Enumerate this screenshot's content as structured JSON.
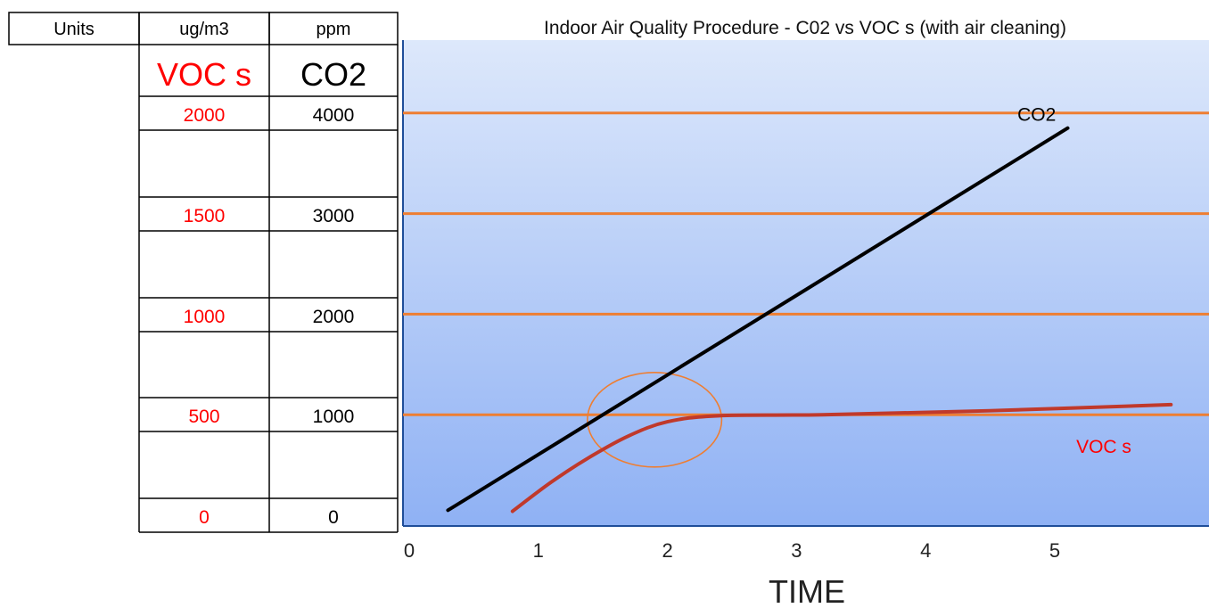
{
  "table": {
    "header": {
      "units": "Units",
      "voc_unit": "ug/m3",
      "co2_unit": "ppm"
    },
    "columns": {
      "voc": "VOC s",
      "co2": "CO2"
    },
    "rows": [
      {
        "voc": "2000",
        "co2": "4000"
      },
      {
        "voc": "1500",
        "co2": "3000"
      },
      {
        "voc": "1000",
        "co2": "2000"
      },
      {
        "voc": "500",
        "co2": "1000"
      },
      {
        "voc": "0",
        "co2": "0"
      }
    ]
  },
  "chart_data": {
    "type": "line",
    "title": "Indoor Air Quality Procedure - C02 vs VOC s (with air cleaning)",
    "xlabel": "TIME",
    "x_ticks": [
      "0",
      "1",
      "2",
      "3",
      "4",
      "5"
    ],
    "xlim": [
      0,
      6.1
    ],
    "ylim": [
      0,
      4000
    ],
    "reference_lines": [
      1000,
      2000,
      3000,
      4000
    ],
    "series": [
      {
        "name": "CO2",
        "color": "#000000",
        "points": [
          [
            0.3,
            50
          ],
          [
            5.1,
            3850
          ]
        ]
      },
      {
        "name": "VOC s",
        "color": "#c0392b",
        "points": [
          [
            0.8,
            40
          ],
          [
            1.1,
            330
          ],
          [
            1.4,
            580
          ],
          [
            1.7,
            790
          ],
          [
            2.0,
            930
          ],
          [
            2.4,
            990
          ],
          [
            3.2,
            1000
          ],
          [
            4.5,
            1040
          ],
          [
            5.9,
            1100
          ]
        ]
      }
    ],
    "annotation": {
      "shape": "circle",
      "center": [
        1.9,
        950
      ],
      "radius_x": 0.52,
      "radius_y": 470
    },
    "colors": {
      "background_top": "#dde8fb",
      "background_bottom": "#8fb1f4",
      "reference_line": "#ee7e32",
      "voc_text": "#ff0000"
    }
  }
}
